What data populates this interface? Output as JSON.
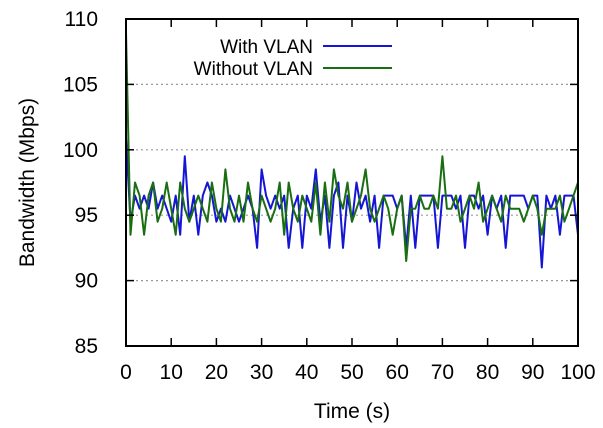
{
  "colors": {
    "with_vlan": "#1515d6",
    "without_vlan": "#1a6e12",
    "grid": "#9a9a9a",
    "axis": "#000000"
  },
  "chart_data": {
    "type": "line",
    "xlabel": "Time (s)",
    "ylabel": "Bandwidth (Mbps)",
    "xlim": [
      0,
      100
    ],
    "ylim": [
      85,
      110
    ],
    "xticks": [
      0,
      10,
      20,
      30,
      40,
      50,
      60,
      70,
      80,
      90,
      100
    ],
    "yticks": [
      85,
      90,
      95,
      100,
      105,
      110
    ],
    "grid": "horizontal dotted at 90, 95, 100, 105",
    "legend": "top-center",
    "series": [
      {
        "name": "With VLAN",
        "color": "#1515d6",
        "x": [
          0,
          1,
          2,
          3,
          4,
          5,
          6,
          7,
          8,
          9,
          10,
          11,
          12,
          13,
          14,
          15,
          16,
          17,
          18,
          19,
          20,
          21,
          22,
          23,
          24,
          25,
          26,
          27,
          28,
          29,
          30,
          31,
          32,
          33,
          34,
          35,
          36,
          37,
          38,
          39,
          40,
          41,
          42,
          43,
          44,
          45,
          46,
          47,
          48,
          49,
          50,
          51,
          52,
          53,
          54,
          55,
          56,
          57,
          58,
          59,
          60,
          61,
          62,
          63,
          64,
          65,
          66,
          67,
          68,
          69,
          70,
          71,
          72,
          73,
          74,
          75,
          76,
          77,
          78,
          79,
          80,
          81,
          82,
          83,
          84,
          85,
          86,
          87,
          88,
          89,
          90,
          91,
          92,
          93,
          94,
          95,
          96,
          97,
          98,
          99,
          100
        ],
        "y": [
          101,
          94.5,
          96.5,
          95.5,
          96.5,
          95.5,
          97.5,
          95.5,
          96.5,
          95.5,
          94.5,
          96.5,
          93.5,
          99.5,
          94.5,
          96.5,
          93.5,
          96.5,
          97.5,
          96.5,
          94.5,
          95.5,
          94.5,
          96.5,
          95.5,
          94.5,
          95.5,
          96.5,
          95.5,
          92.5,
          98.5,
          96.5,
          95.5,
          96.5,
          95.5,
          96.5,
          92.5,
          95.5,
          96.5,
          92.5,
          96.5,
          95.5,
          98.5,
          94.5,
          96.5,
          92.5,
          96.5,
          97.5,
          92.5,
          96.5,
          94.5,
          97.5,
          95.5,
          96.5,
          94.5,
          96.5,
          92.5,
          96.5,
          96.5,
          96.5,
          95.5,
          96.5,
          92.5,
          96.5,
          92.5,
          96.5,
          96.5,
          96.5,
          96.5,
          92.5,
          96.5,
          96.5,
          96.5,
          95.5,
          96.5,
          92.5,
          96.5,
          96.5,
          95.5,
          96.5,
          93.5,
          96.5,
          95.5,
          96.5,
          92.5,
          96.5,
          96.5,
          96.5,
          96.5,
          95.5,
          96.5,
          96.5,
          91,
          96.5,
          95.5,
          96.5,
          93.5,
          96.5,
          96.5,
          96.5,
          93.5
        ]
      },
      {
        "name": "Without VLAN",
        "color": "#1a6e12",
        "x": [
          0,
          1,
          2,
          3,
          4,
          5,
          6,
          7,
          8,
          9,
          10,
          11,
          12,
          13,
          14,
          15,
          16,
          17,
          18,
          19,
          20,
          21,
          22,
          23,
          24,
          25,
          26,
          27,
          28,
          29,
          30,
          31,
          32,
          33,
          34,
          35,
          36,
          37,
          38,
          39,
          40,
          41,
          42,
          43,
          44,
          45,
          46,
          47,
          48,
          49,
          50,
          51,
          52,
          53,
          54,
          55,
          56,
          57,
          58,
          59,
          60,
          61,
          62,
          63,
          64,
          65,
          66,
          67,
          68,
          69,
          70,
          71,
          72,
          73,
          74,
          75,
          76,
          77,
          78,
          79,
          80,
          81,
          82,
          83,
          84,
          85,
          86,
          87,
          88,
          89,
          90,
          91,
          92,
          93,
          94,
          95,
          96,
          97,
          98,
          99,
          100
        ],
        "y": [
          109,
          93.5,
          97.5,
          96.5,
          93.5,
          96.5,
          97.5,
          94.5,
          95.5,
          97.5,
          95.5,
          93.5,
          97.5,
          95.5,
          94.5,
          95.5,
          96.5,
          95.5,
          94.5,
          97.5,
          95.5,
          94.5,
          98.5,
          95.5,
          94.5,
          96.5,
          94.5,
          97.5,
          95.5,
          94.5,
          96.5,
          95.5,
          94.5,
          95.5,
          97.5,
          93.5,
          97.5,
          95.5,
          94.5,
          96.5,
          95.5,
          94.5,
          97.5,
          93.5,
          97.5,
          94.5,
          98.5,
          96.5,
          95.5,
          97.5,
          94.5,
          95.5,
          96.5,
          98.5,
          95.5,
          94.5,
          95.5,
          96.5,
          95.5,
          93.5,
          95.5,
          96.5,
          91.5,
          95.5,
          95.5,
          96.5,
          95.5,
          95.5,
          96.5,
          95.5,
          99.5,
          95.5,
          95.5,
          96.5,
          94.5,
          95.5,
          96.5,
          95.5,
          97.5,
          94.5,
          95.5,
          96.5,
          95.5,
          94.5,
          96.5,
          95.5,
          95.5,
          95.5,
          94.5,
          95.5,
          96.5,
          95.5,
          93.5,
          95.5,
          95.5,
          95.5,
          96.5,
          94.5,
          95.5,
          96.5,
          97.5
        ]
      }
    ]
  }
}
